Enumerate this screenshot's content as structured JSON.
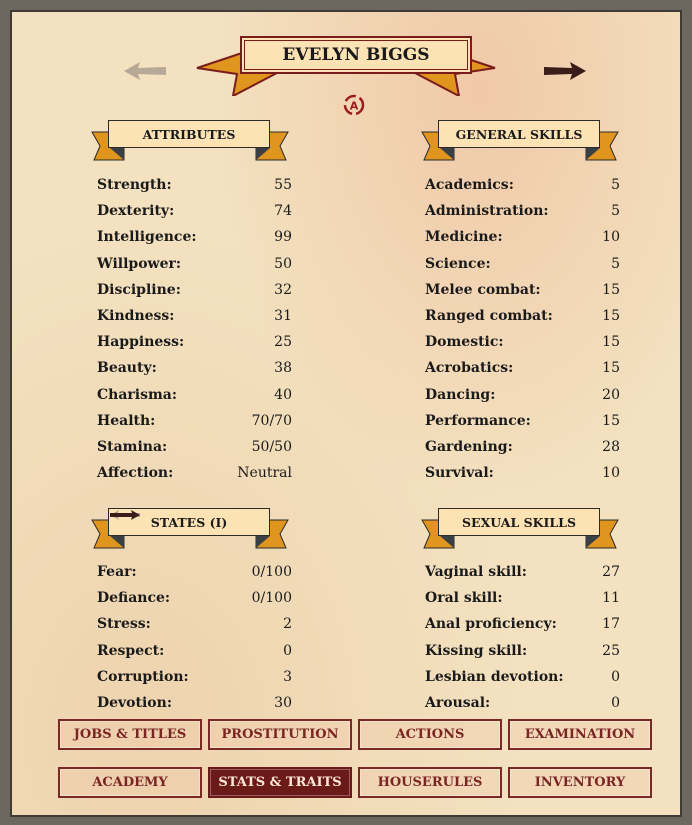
{
  "character_name": "EVELYN BIGGS",
  "nav": {
    "prev_icon": "arrow-left-icon",
    "next_icon": "arrow-right-icon",
    "refresh_icon": "auto-refresh-icon"
  },
  "sections": {
    "attributes": {
      "title": "ATTRIBUTES",
      "rows": [
        [
          "Strength:",
          "55"
        ],
        [
          "Dexterity:",
          "74"
        ],
        [
          "Intelligence:",
          "99"
        ],
        [
          "Willpower:",
          "50"
        ],
        [
          "Discipline:",
          "32"
        ],
        [
          "Kindness:",
          "31"
        ],
        [
          "Happiness:",
          "25"
        ],
        [
          "Beauty:",
          "38"
        ],
        [
          "Charisma:",
          "40"
        ],
        [
          "Health:",
          "70/70"
        ],
        [
          "Stamina:",
          "50/50"
        ],
        [
          "Affection:",
          "Neutral"
        ]
      ]
    },
    "general_skills": {
      "title": "GENERAL SKILLS",
      "rows": [
        [
          "Academics:",
          "5"
        ],
        [
          "Administration:",
          "5"
        ],
        [
          "Medicine:",
          "10"
        ],
        [
          "Science:",
          "5"
        ],
        [
          "Melee combat:",
          "15"
        ],
        [
          "Ranged combat:",
          "15"
        ],
        [
          "Domestic:",
          "15"
        ],
        [
          "Acrobatics:",
          "15"
        ],
        [
          "Dancing:",
          "20"
        ],
        [
          "Performance:",
          "15"
        ],
        [
          "Gardening:",
          "28"
        ],
        [
          "Survival:",
          "10"
        ]
      ]
    },
    "states": {
      "title": "STATES (I)",
      "rows": [
        [
          "Fear:",
          "0/100"
        ],
        [
          "Defiance:",
          "0/100"
        ],
        [
          "Stress:",
          "2"
        ],
        [
          "Respect:",
          "0"
        ],
        [
          "Corruption:",
          "3"
        ],
        [
          "Devotion:",
          "30"
        ]
      ]
    },
    "sexual_skills": {
      "title": "SEXUAL SKILLS",
      "rows": [
        [
          "Vaginal skill:",
          "27"
        ],
        [
          "Oral skill:",
          "11"
        ],
        [
          "Anal proficiency:",
          "17"
        ],
        [
          "Kissing skill:",
          "25"
        ],
        [
          "Lesbian devotion:",
          "0"
        ],
        [
          "Arousal:",
          "0"
        ]
      ]
    }
  },
  "buttons": [
    {
      "label": "JOBS & TITLES"
    },
    {
      "label": "PROSTITUTION"
    },
    {
      "label": "ACTIONS"
    },
    {
      "label": "EXAMINATION"
    },
    {
      "label": "ACADEMY"
    },
    {
      "label": "STATS & TRAITS",
      "active": true
    },
    {
      "label": "HOUSERULES"
    },
    {
      "label": "INVENTORY"
    }
  ],
  "colors": {
    "accent": "#6b1a1a",
    "ribbon": "#e0951f",
    "parchment": "#f3e1bf"
  }
}
